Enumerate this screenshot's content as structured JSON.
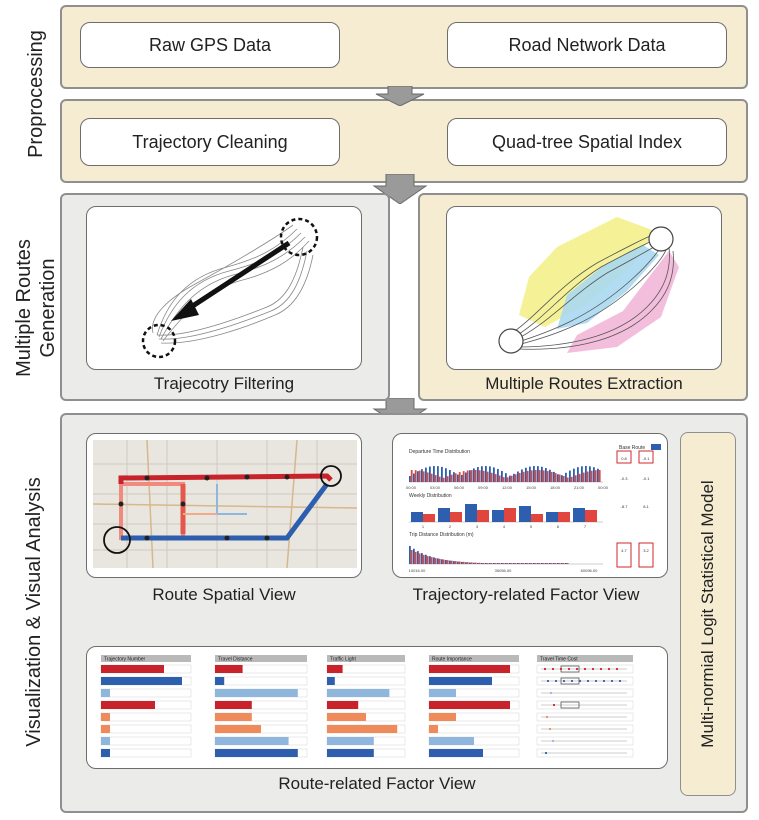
{
  "stages": {
    "preprocessing": {
      "label": "Proprocessing",
      "boxes": [
        "Raw GPS Data",
        "Road Network Data",
        "Trajectory Cleaning",
        "Quad-tree Spatial Index"
      ]
    },
    "generation": {
      "label_line1": "Multiple Routes",
      "label_line2": "Generation",
      "captions": [
        "Trajecotry Filtering",
        "Multiple Routes Extraction"
      ]
    },
    "visualization": {
      "label": "Visualization & Visual Analysis",
      "captions": [
        "Route Spatial View",
        "Trajectory-related Factor View",
        "Route-related Factor View"
      ],
      "model_label": "Multi-normial Logit Statistical Model"
    }
  },
  "trajectory_view": {
    "panel_titles": [
      "Departure Time Distribution",
      "Weekly Distribution",
      "Trip Distance Distribution (m)"
    ],
    "hour_ticks": [
      "00:00",
      "03:00",
      "06:00",
      "09:00",
      "12:00",
      "15:00",
      "18:00",
      "21:00",
      "00:00"
    ],
    "day_ticks": [
      "1",
      "2",
      "3",
      "4",
      "5",
      "6",
      "7"
    ],
    "distance_ticks": [
      "10016.00",
      "35056.00",
      "60096.00"
    ],
    "legend": "Base Route",
    "coefficients": [
      "0.8",
      "-0.1",
      "-0.3",
      "-0.1",
      "-8.7",
      "8.1",
      "4.7",
      "3.2"
    ]
  },
  "route_view": {
    "column_titles": [
      "Trajectory Number",
      "Travel Distance",
      "Traffic Light",
      "Route Importance",
      "Travel Time Cost"
    ],
    "colors": {
      "red": "#c8232b",
      "blue": "#2d5fae",
      "orange": "#ef8a5a",
      "lightblue": "#8fb6dd"
    }
  },
  "colors": {
    "beige": "#f5ecd2",
    "gray_panel": "#ebebe9",
    "arrow": "#9a9a9a",
    "yellow_route": "#f3ef8c",
    "cyan_route": "#a8d8ef",
    "pink_route": "#f2b7d8"
  }
}
